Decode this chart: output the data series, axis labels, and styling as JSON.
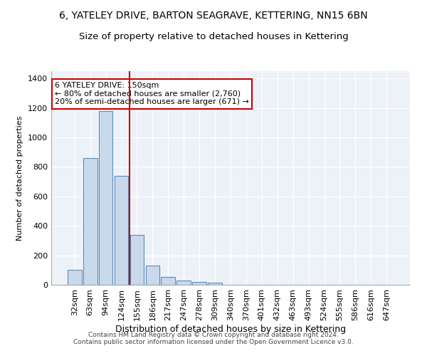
{
  "title1": "6, YATELEY DRIVE, BARTON SEAGRAVE, KETTERING, NN15 6BN",
  "title2": "Size of property relative to detached houses in Kettering",
  "xlabel": "Distribution of detached houses by size in Kettering",
  "ylabel": "Number of detached properties",
  "categories": [
    "32sqm",
    "63sqm",
    "94sqm",
    "124sqm",
    "155sqm",
    "186sqm",
    "217sqm",
    "247sqm",
    "278sqm",
    "309sqm",
    "340sqm",
    "370sqm",
    "401sqm",
    "432sqm",
    "463sqm",
    "493sqm",
    "524sqm",
    "555sqm",
    "586sqm",
    "616sqm",
    "647sqm"
  ],
  "values": [
    100,
    860,
    1180,
    740,
    340,
    130,
    55,
    28,
    18,
    15,
    0,
    0,
    0,
    0,
    0,
    0,
    0,
    0,
    0,
    0,
    0
  ],
  "bar_color": "#c9d9ec",
  "bar_edge_color": "#5b8db8",
  "vline_color": "#cc0000",
  "vline_index": 3.5,
  "annotation_text": "6 YATELEY DRIVE: 150sqm\n← 80% of detached houses are smaller (2,760)\n20% of semi-detached houses are larger (671) →",
  "annotation_box_color": "#ffffff",
  "annotation_box_edge_color": "#cc0000",
  "ylim": [
    0,
    1450
  ],
  "yticks": [
    0,
    200,
    400,
    600,
    800,
    1000,
    1200,
    1400
  ],
  "footer1": "Contains HM Land Registry data © Crown copyright and database right 2024.",
  "footer2": "Contains public sector information licensed under the Open Government Licence v3.0.",
  "bg_color": "#edf2f9",
  "grid_color": "#ffffff",
  "title1_fontsize": 10,
  "title2_fontsize": 9.5,
  "xlabel_fontsize": 9,
  "ylabel_fontsize": 8,
  "tick_fontsize": 8,
  "footer_fontsize": 6.5,
  "ann_fontsize": 8
}
